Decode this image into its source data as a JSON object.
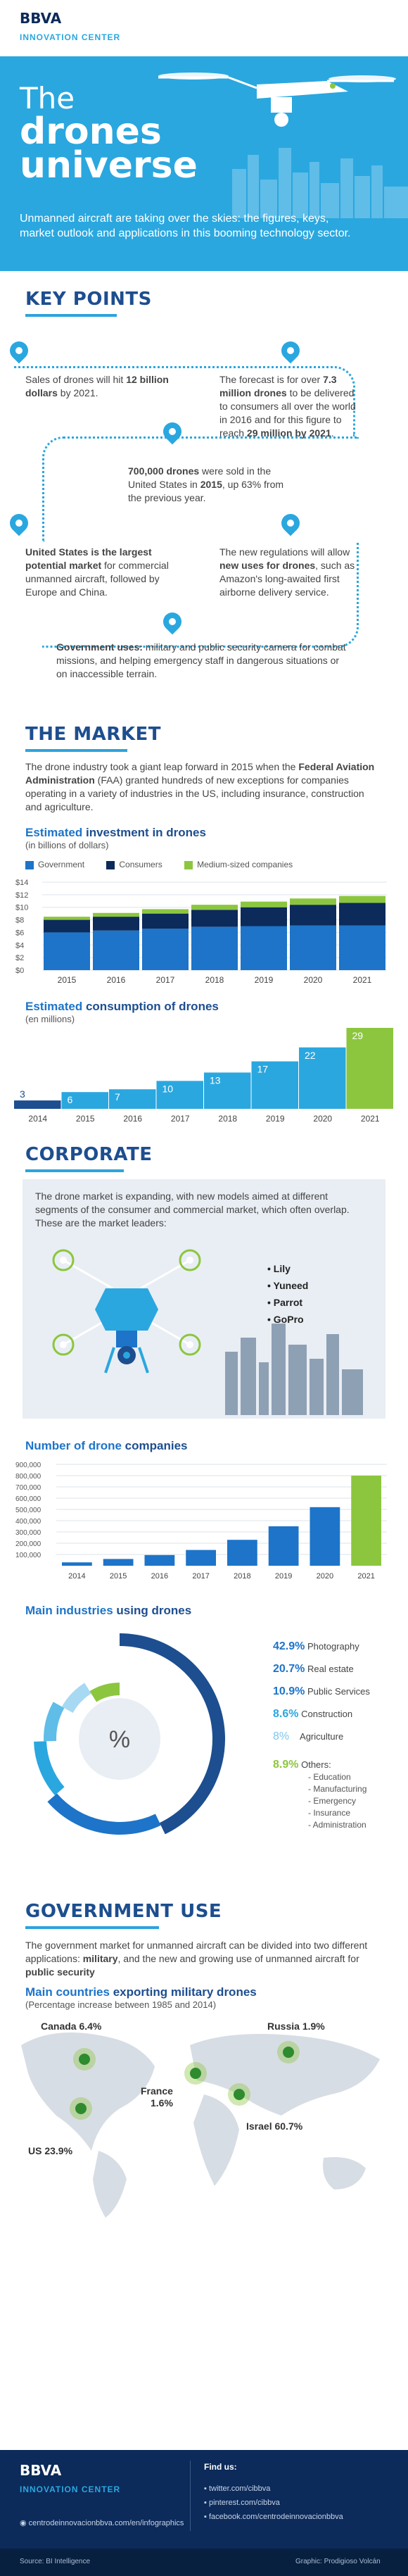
{
  "brand": {
    "name": "BBVA",
    "sub": "INNOVATION CENTER"
  },
  "hero": {
    "title_line1": "The",
    "title_line2": "drones",
    "title_line3": "universe",
    "intro": "Unmanned aircraft are taking over the skies: the figures, keys, market outlook and applications in this booming technology sector."
  },
  "key_points": {
    "title": "KEY POINTS",
    "p1": {
      "pre": "Sales of drones will hit ",
      "bold": "12 billion dollars",
      "post": " by 2021."
    },
    "p2": {
      "pre": "The forecast is for over ",
      "bold": "7.3 million drones",
      "mid": " to be delivered to consumers all over the world in 2016 and for this figure to reach ",
      "bold2": "29 million by 2021",
      "post": "."
    },
    "p3": {
      "bold": "700,000 drones",
      "mid": " were sold in the United States in ",
      "bold2": "2015",
      "post": ", up 63% from the previous year."
    },
    "p4": {
      "bold": "United States is the largest potential market",
      "post": " for commercial unmanned aircraft, followed by Europe and China."
    },
    "p5": {
      "pre": "The new regulations will allow ",
      "bold": "new uses for drones",
      "post": ", such as Amazon's long-awaited first airborne delivery service."
    },
    "p6": {
      "bold": "Government uses:",
      "post": " military and public security camera for combat missions, and helping emergency staff in dangerous situations or on inaccessible terrain."
    }
  },
  "market": {
    "title": "THE MARKET",
    "text_pre": "The drone industry took a giant leap forward in 2015 when the ",
    "text_bold": "Federal Aviation Administration",
    "text_post": " (FAA) granted hundreds of new exceptions for companies operating in a variety of industries in the US, including insurance, construction and agriculture."
  },
  "investment_heading": {
    "a": "Estimated",
    "b": " investment in drones"
  },
  "investment_unit": "(in billions of dollars)",
  "consumption_heading": {
    "a": "Estimated",
    "b": " consumption of drones"
  },
  "consumption_unit": "(en millions)",
  "corporate": {
    "title": "CORPORATE",
    "text": "The drone market is expanding, with new models aimed at different segments of the consumer and commercial market, which often overlap. These are the market leaders:",
    "leaders": [
      "Lily",
      "Yuneed",
      "Parrot",
      "GoPro"
    ]
  },
  "companies_heading": {
    "a": "Number of drone",
    "b": " companies"
  },
  "industries_heading": {
    "a": "Main industries",
    "b": " using drones"
  },
  "industries": [
    {
      "pct": "42.9%",
      "label": "Photography"
    },
    {
      "pct": "20.7%",
      "label": "Real estate"
    },
    {
      "pct": "10.9%",
      "label": "Public Services"
    },
    {
      "pct": "8.6%",
      "label": "Construction"
    },
    {
      "pct": "8%",
      "label": "Agriculture"
    },
    {
      "pct": "8.9%",
      "label": "Others:"
    }
  ],
  "others_list": [
    "- Education",
    "- Manufacturing",
    "- Emergency",
    "- Insurance",
    "- Administration"
  ],
  "percent_symbol": "%",
  "government": {
    "title": "GOVERNMENT USE",
    "pre": "The government market for unmanned aircraft can be divided into two different applications: ",
    "b1": "military",
    "mid": ", and the new and growing use of unmanned aircraft for ",
    "b2": "public security"
  },
  "countries_heading": {
    "a": "Main countries",
    "b": " exporting military drones"
  },
  "countries_note": "(Percentage increase between 1985 and 2014)",
  "countries": [
    {
      "name": "Canada",
      "pct": "6.4%"
    },
    {
      "name": "Russia",
      "pct": "1.9%"
    },
    {
      "name": "France",
      "pct": "1.6%"
    },
    {
      "name": "US",
      "pct": "23.9%"
    },
    {
      "name": "Israel",
      "pct": "60.7%"
    }
  ],
  "footer": {
    "brand": "BBVA",
    "sub": "INNOVATION CENTER",
    "web": "centrodeinnovacionbbva.com/en/infographics",
    "find_us": "Find us:",
    "links": [
      "twitter.com/cibbva",
      "pinterest.com/cibbva",
      "facebook.com/centrodeinnovacionbbva"
    ],
    "source": "Source: BI Intelligence",
    "graphic": "Graphic: Prodigioso Volcán"
  },
  "colors": {
    "navy": "#1d4e8f",
    "blue": "#1d74c9",
    "light": "#2aa7df",
    "green": "#8cc63f",
    "dark": "#0c2a5a"
  },
  "chart_data": [
    {
      "type": "bar",
      "title": "Estimated investment in drones",
      "ylabel": "(in billions of dollars)",
      "categories": [
        "2015",
        "2016",
        "2017",
        "2018",
        "2019",
        "2020",
        "2021"
      ],
      "series": [
        {
          "name": "Government",
          "values": [
            6.0,
            6.3,
            6.6,
            6.9,
            7.0,
            7.1,
            7.1
          ]
        },
        {
          "name": "Consumers",
          "values": [
            2.0,
            2.2,
            2.4,
            2.7,
            3.0,
            3.3,
            3.6
          ]
        },
        {
          "name": "Medium-sized companies",
          "values": [
            0.5,
            0.6,
            0.7,
            0.8,
            0.9,
            1.0,
            1.1
          ]
        }
      ],
      "stacked": true,
      "ylim": [
        0,
        14
      ],
      "yticks": [
        "$14",
        "$12",
        "$10",
        "$8",
        "$6",
        "$4",
        "$2",
        "$0"
      ]
    },
    {
      "type": "bar",
      "title": "Estimated consumption of drones",
      "ylabel": "(en millions)",
      "categories": [
        "2014",
        "2015",
        "2016",
        "2017",
        "2018",
        "2019",
        "2020",
        "2021"
      ],
      "values": [
        3,
        6,
        7,
        10,
        13,
        17,
        22,
        29
      ]
    },
    {
      "type": "bar",
      "title": "Number of drone companies",
      "categories": [
        "2014",
        "2015",
        "2016",
        "2017",
        "2018",
        "2019",
        "2020",
        "2021"
      ],
      "values": [
        30000,
        60000,
        95000,
        140000,
        230000,
        350000,
        520000,
        800000
      ],
      "ylim": [
        0,
        900000
      ],
      "yticks": [
        "900,000",
        "800,000",
        "700,000",
        "600,000",
        "500,000",
        "400,000",
        "300,000",
        "200,000",
        "100,000"
      ]
    },
    {
      "type": "pie",
      "title": "Main industries using drones",
      "categories": [
        "Photography",
        "Real estate",
        "Public Services",
        "Construction",
        "Agriculture",
        "Others"
      ],
      "values": [
        42.9,
        20.7,
        10.9,
        8.6,
        8,
        8.9
      ]
    }
  ]
}
